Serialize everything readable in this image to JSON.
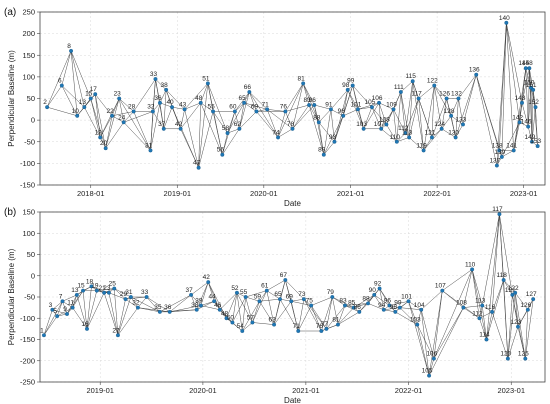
{
  "chart_data": [
    {
      "type": "scatter",
      "panel_label": "(a)",
      "xlabel": "Date",
      "ylabel": "Perpendicular Baseline (m)",
      "xlim": [
        "2017-06-01",
        "2023-04-01"
      ],
      "ylim": [
        -150,
        250
      ],
      "yticks": [
        -150,
        -100,
        -50,
        0,
        50,
        100,
        150,
        200,
        250
      ],
      "xticks": [
        "2018-01",
        "2019-01",
        "2020-01",
        "2021-01",
        "2022-01",
        "2023-01"
      ],
      "grid": true,
      "points": [
        {
          "label": "2",
          "x": "2017-07-01",
          "y": 30
        },
        {
          "label": "6",
          "x": "2017-09-01",
          "y": 80
        },
        {
          "label": "8",
          "x": "2017-10-10",
          "y": 160
        },
        {
          "label": "10",
          "x": "2017-11-05",
          "y": 10
        },
        {
          "label": "13",
          "x": "2017-12-05",
          "y": 30
        },
        {
          "label": "15",
          "x": "2018-01-01",
          "y": 50
        },
        {
          "label": "17",
          "x": "2018-01-20",
          "y": 60
        },
        {
          "label": "19",
          "x": "2018-02-10",
          "y": -40
        },
        {
          "label": "20",
          "x": "2018-03-05",
          "y": -65
        },
        {
          "label": "22",
          "x": "2018-04-01",
          "y": 10
        },
        {
          "label": "23",
          "x": "2018-05-01",
          "y": 50
        },
        {
          "label": "24",
          "x": "2018-05-20",
          "y": -5
        },
        {
          "label": "28",
          "x": "2018-07-01",
          "y": 20
        },
        {
          "label": "31",
          "x": "2018-09-10",
          "y": -70
        },
        {
          "label": "32",
          "x": "2018-09-20",
          "y": 20
        },
        {
          "label": "33",
          "x": "2018-10-01",
          "y": 95
        },
        {
          "label": "36",
          "x": "2018-10-20",
          "y": 40
        },
        {
          "label": "37",
          "x": "2018-11-05",
          "y": -20
        },
        {
          "label": "38",
          "x": "2018-11-15",
          "y": 70
        },
        {
          "label": "40",
          "x": "2018-12-10",
          "y": 30
        },
        {
          "label": "42",
          "x": "2019-01-15",
          "y": -20
        },
        {
          "label": "43",
          "x": "2019-02-01",
          "y": 25
        },
        {
          "label": "47",
          "x": "2019-04-01",
          "y": -110
        },
        {
          "label": "48",
          "x": "2019-04-10",
          "y": 40
        },
        {
          "label": "51",
          "x": "2019-05-10",
          "y": 85
        },
        {
          "label": "55",
          "x": "2019-06-01",
          "y": 20
        },
        {
          "label": "56",
          "x": "2019-07-10",
          "y": -80
        },
        {
          "label": "58",
          "x": "2019-08-01",
          "y": -30
        },
        {
          "label": "60",
          "x": "2019-09-01",
          "y": 20
        },
        {
          "label": "62",
          "x": "2019-09-20",
          "y": -20
        },
        {
          "label": "65",
          "x": "2019-10-10",
          "y": 40
        },
        {
          "label": "66",
          "x": "2019-11-01",
          "y": 65
        },
        {
          "label": "69",
          "x": "2019-12-01",
          "y": 20
        },
        {
          "label": "71",
          "x": "2020-01-15",
          "y": 25
        },
        {
          "label": "74",
          "x": "2020-03-01",
          "y": -40
        },
        {
          "label": "76",
          "x": "2020-04-01",
          "y": 20
        },
        {
          "label": "78",
          "x": "2020-05-01",
          "y": -20
        },
        {
          "label": "81",
          "x": "2020-06-15",
          "y": 85
        },
        {
          "label": "83",
          "x": "2020-07-10",
          "y": 35
        },
        {
          "label": "86",
          "x": "2020-08-01",
          "y": 35
        },
        {
          "label": "88",
          "x": "2020-08-20",
          "y": -5
        },
        {
          "label": "89",
          "x": "2020-09-10",
          "y": -80
        },
        {
          "label": "91",
          "x": "2020-10-10",
          "y": 25
        },
        {
          "label": "93",
          "x": "2020-10-25",
          "y": -50
        },
        {
          "label": "96",
          "x": "2020-12-01",
          "y": 10
        },
        {
          "label": "98",
          "x": "2020-12-20",
          "y": 70
        },
        {
          "label": "99",
          "x": "2021-01-10",
          "y": 80
        },
        {
          "label": "101",
          "x": "2021-02-01",
          "y": 25
        },
        {
          "label": "103",
          "x": "2021-02-25",
          "y": -20
        },
        {
          "label": "105",
          "x": "2021-04-01",
          "y": 30
        },
        {
          "label": "106",
          "x": "2021-05-01",
          "y": 40
        },
        {
          "label": "107",
          "x": "2021-05-10",
          "y": -20
        },
        {
          "label": "108",
          "x": "2021-06-01",
          "y": -10
        },
        {
          "label": "109",
          "x": "2021-07-01",
          "y": 25
        },
        {
          "label": "110",
          "x": "2021-07-15",
          "y": -50
        },
        {
          "label": "111",
          "x": "2021-08-01",
          "y": 65
        },
        {
          "label": "112",
          "x": "2021-08-20",
          "y": -30
        },
        {
          "label": "113",
          "x": "2021-09-05",
          "y": -40
        },
        {
          "label": "115",
          "x": "2021-09-20",
          "y": 90
        },
        {
          "label": "117",
          "x": "2021-10-15",
          "y": 50
        },
        {
          "label": "119",
          "x": "2021-11-05",
          "y": -70
        },
        {
          "label": "121",
          "x": "2021-12-10",
          "y": -40
        },
        {
          "label": "122",
          "x": "2021-12-20",
          "y": 80
        },
        {
          "label": "124",
          "x": "2022-01-20",
          "y": -20
        },
        {
          "label": "126",
          "x": "2022-02-10",
          "y": 50
        },
        {
          "label": "128",
          "x": "2022-03-01",
          "y": 10
        },
        {
          "label": "130",
          "x": "2022-03-20",
          "y": -40
        },
        {
          "label": "132",
          "x": "2022-04-01",
          "y": 50
        },
        {
          "label": "133",
          "x": "2022-04-20",
          "y": -10
        },
        {
          "label": "136",
          "x": "2022-06-15",
          "y": 105
        },
        {
          "label": "137",
          "x": "2022-09-10",
          "y": -105
        },
        {
          "label": "138",
          "x": "2022-09-20",
          "y": -70
        },
        {
          "label": "139",
          "x": "2022-10-01",
          "y": -85
        },
        {
          "label": "140",
          "x": "2022-10-20",
          "y": 225
        },
        {
          "label": "141",
          "x": "2022-11-20",
          "y": -70
        },
        {
          "label": "142",
          "x": "2022-12-15",
          "y": -5
        },
        {
          "label": "143",
          "x": "2022-12-25",
          "y": 40
        },
        {
          "label": "145",
          "x": "2023-01-10",
          "y": 120
        },
        {
          "label": "148",
          "x": "2023-01-25",
          "y": 120
        },
        {
          "label": "150",
          "x": "2023-02-01",
          "y": 75
        },
        {
          "label": "151",
          "x": "2023-02-10",
          "y": 70
        },
        {
          "label": "152",
          "x": "2023-02-20",
          "y": 30
        },
        {
          "label": "153",
          "x": "2023-03-01",
          "y": -60
        },
        {
          "label": "149",
          "x": "2023-02-05",
          "y": -50
        },
        {
          "label": "146",
          "x": "2023-01-20",
          "y": -15
        }
      ]
    },
    {
      "type": "scatter",
      "panel_label": "(b)",
      "xlabel": "Date",
      "ylabel": "Perpendicular Baseline (m)",
      "xlim": [
        "2018-06-01",
        "2023-05-01"
      ],
      "ylim": [
        -250,
        150
      ],
      "yticks": [
        -250,
        -200,
        -150,
        -100,
        -50,
        0,
        50,
        100,
        150
      ],
      "xticks": [
        "2019-01",
        "2020-01",
        "2021-01",
        "2022-01",
        "2023-01"
      ],
      "grid": true,
      "points": [
        {
          "label": "1",
          "x": "2018-06-15",
          "y": -140
        },
        {
          "label": "3",
          "x": "2018-07-15",
          "y": -80
        },
        {
          "label": "5",
          "x": "2018-08-01",
          "y": -95
        },
        {
          "label": "7",
          "x": "2018-08-20",
          "y": -60
        },
        {
          "label": "9",
          "x": "2018-09-05",
          "y": -90
        },
        {
          "label": "11",
          "x": "2018-09-25",
          "y": -75
        },
        {
          "label": "13",
          "x": "2018-10-10",
          "y": -45
        },
        {
          "label": "15",
          "x": "2018-11-01",
          "y": -35
        },
        {
          "label": "16",
          "x": "2018-11-15",
          "y": -125
        },
        {
          "label": "18",
          "x": "2018-12-01",
          "y": -25
        },
        {
          "label": "19",
          "x": "2018-12-20",
          "y": -35
        },
        {
          "label": "21",
          "x": "2019-01-15",
          "y": -40
        },
        {
          "label": "23",
          "x": "2019-02-01",
          "y": -40
        },
        {
          "label": "25",
          "x": "2019-02-20",
          "y": -30
        },
        {
          "label": "27",
          "x": "2019-03-05",
          "y": -140
        },
        {
          "label": "29",
          "x": "2019-04-01",
          "y": -55
        },
        {
          "label": "31",
          "x": "2019-04-20",
          "y": -50
        },
        {
          "label": "32",
          "x": "2019-05-15",
          "y": -75
        },
        {
          "label": "33",
          "x": "2019-06-15",
          "y": -50
        },
        {
          "label": "35",
          "x": "2019-08-01",
          "y": -85
        },
        {
          "label": "36",
          "x": "2019-09-05",
          "y": -85
        },
        {
          "label": "37",
          "x": "2019-11-20",
          "y": -45
        },
        {
          "label": "38",
          "x": "2019-12-10",
          "y": -80
        },
        {
          "label": "39",
          "x": "2019-12-25",
          "y": -70
        },
        {
          "label": "42",
          "x": "2020-01-20",
          "y": -15
        },
        {
          "label": "44",
          "x": "2020-02-10",
          "y": -60
        },
        {
          "label": "46",
          "x": "2020-03-01",
          "y": -80
        },
        {
          "label": "48",
          "x": "2020-03-25",
          "y": -100
        },
        {
          "label": "50",
          "x": "2020-04-15",
          "y": -110
        },
        {
          "label": "52",
          "x": "2020-05-01",
          "y": -40
        },
        {
          "label": "54",
          "x": "2020-05-20",
          "y": -130
        },
        {
          "label": "55",
          "x": "2020-06-01",
          "y": -50
        },
        {
          "label": "57",
          "x": "2020-06-25",
          "y": -110
        },
        {
          "label": "59",
          "x": "2020-07-20",
          "y": -60
        },
        {
          "label": "61",
          "x": "2020-08-15",
          "y": -35
        },
        {
          "label": "63",
          "x": "2020-09-10",
          "y": -115
        },
        {
          "label": "65",
          "x": "2020-10-01",
          "y": -55
        },
        {
          "label": "67",
          "x": "2020-10-20",
          "y": -10
        },
        {
          "label": "69",
          "x": "2020-11-10",
          "y": -60
        },
        {
          "label": "71",
          "x": "2020-12-05",
          "y": -130
        },
        {
          "label": "73",
          "x": "2020-12-25",
          "y": -55
        },
        {
          "label": "75",
          "x": "2021-01-20",
          "y": -70
        },
        {
          "label": "76",
          "x": "2021-02-25",
          "y": -130
        },
        {
          "label": "77",
          "x": "2021-03-15",
          "y": -125
        },
        {
          "label": "79",
          "x": "2021-04-05",
          "y": -50
        },
        {
          "label": "81",
          "x": "2021-04-25",
          "y": -115
        },
        {
          "label": "83",
          "x": "2021-05-20",
          "y": -70
        },
        {
          "label": "85",
          "x": "2021-06-20",
          "y": -75
        },
        {
          "label": "86",
          "x": "2021-07-10",
          "y": -85
        },
        {
          "label": "88",
          "x": "2021-08-10",
          "y": -65
        },
        {
          "label": "90",
          "x": "2021-09-01",
          "y": -45
        },
        {
          "label": "92",
          "x": "2021-09-20",
          "y": -30
        },
        {
          "label": "94",
          "x": "2021-10-05",
          "y": -80
        },
        {
          "label": "96",
          "x": "2021-10-25",
          "y": -70
        },
        {
          "label": "98",
          "x": "2021-11-15",
          "y": -85
        },
        {
          "label": "99",
          "x": "2021-12-01",
          "y": -75
        },
        {
          "label": "101",
          "x": "2022-01-01",
          "y": -60
        },
        {
          "label": "103",
          "x": "2022-02-01",
          "y": -115
        },
        {
          "label": "104",
          "x": "2022-02-15",
          "y": -80
        },
        {
          "label": "105",
          "x": "2022-03-15",
          "y": -235
        },
        {
          "label": "106",
          "x": "2022-04-01",
          "y": -195
        },
        {
          "label": "107",
          "x": "2022-05-01",
          "y": -35
        },
        {
          "label": "108",
          "x": "2022-07-15",
          "y": -75
        },
        {
          "label": "110",
          "x": "2022-08-15",
          "y": 15
        },
        {
          "label": "112",
          "x": "2022-09-10",
          "y": -100
        },
        {
          "label": "113",
          "x": "2022-09-20",
          "y": -70
        },
        {
          "label": "114",
          "x": "2022-10-05",
          "y": -150
        },
        {
          "label": "116",
          "x": "2022-10-25",
          "y": -85
        },
        {
          "label": "117",
          "x": "2022-11-20",
          "y": 145
        },
        {
          "label": "118",
          "x": "2022-12-05",
          "y": -10
        },
        {
          "label": "120",
          "x": "2022-12-20",
          "y": -195
        },
        {
          "label": "121",
          "x": "2023-01-05",
          "y": -45
        },
        {
          "label": "122",
          "x": "2023-01-15",
          "y": -40
        },
        {
          "label": "123",
          "x": "2023-01-25",
          "y": -120
        },
        {
          "label": "125",
          "x": "2023-02-20",
          "y": -195
        },
        {
          "label": "126",
          "x": "2023-03-01",
          "y": -80
        },
        {
          "label": "127",
          "x": "2023-03-20",
          "y": -55
        }
      ]
    }
  ]
}
